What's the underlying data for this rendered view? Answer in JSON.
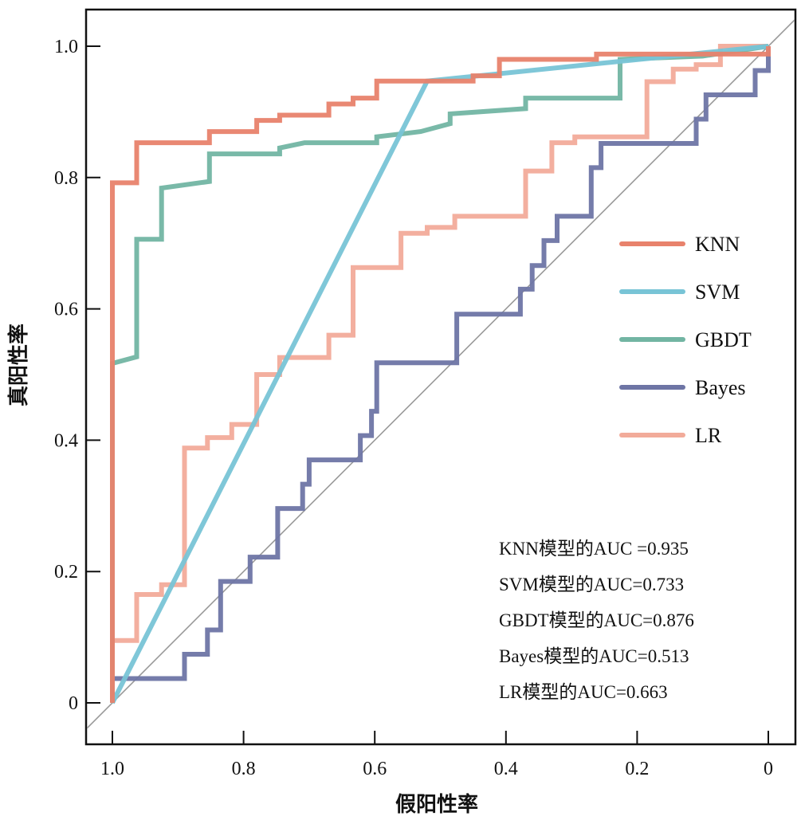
{
  "chart_data": {
    "type": "line",
    "title": "",
    "xlabel": "假阳性率",
    "ylabel": "真阳性率",
    "xlim": [
      1.05,
      -0.04
    ],
    "ylim": [
      -0.04,
      1.06
    ],
    "x_reversed": true,
    "x_ticks": [
      1.0,
      0.8,
      0.6,
      0.4,
      0.2,
      0
    ],
    "x_tick_labels": [
      "1.0",
      "0.8",
      "0.6",
      "0.4",
      "0.2",
      "0"
    ],
    "y_ticks": [
      0,
      0.2,
      0.4,
      0.6,
      0.8,
      1.0
    ],
    "y_tick_labels": [
      "0",
      "0.2",
      "0.4",
      "0.6",
      "0.8",
      "1.0"
    ],
    "grid": false,
    "legend_position": "right",
    "diagonal_reference": true,
    "series": [
      {
        "name": "KNN",
        "color": "#e8826c",
        "points": [
          [
            1.0,
            0
          ],
          [
            1.0,
            0.792
          ],
          [
            0.963,
            0.792
          ],
          [
            0.963,
            0.853
          ],
          [
            0.852,
            0.853
          ],
          [
            0.852,
            0.87
          ],
          [
            0.78,
            0.87
          ],
          [
            0.78,
            0.887
          ],
          [
            0.745,
            0.887
          ],
          [
            0.745,
            0.895
          ],
          [
            0.67,
            0.895
          ],
          [
            0.67,
            0.912
          ],
          [
            0.633,
            0.912
          ],
          [
            0.633,
            0.921
          ],
          [
            0.597,
            0.921
          ],
          [
            0.597,
            0.947
          ],
          [
            0.45,
            0.947
          ],
          [
            0.45,
            0.955
          ],
          [
            0.41,
            0.955
          ],
          [
            0.41,
            0.98
          ],
          [
            0.262,
            0.98
          ],
          [
            0.262,
            0.988
          ],
          [
            0.0,
            0.988
          ],
          [
            0.0,
            1.0
          ]
        ]
      },
      {
        "name": "SVM",
        "color": "#78c4d6",
        "points": [
          [
            1.0,
            0
          ],
          [
            0.52,
            0.947
          ],
          [
            0.0,
            1.0
          ]
        ]
      },
      {
        "name": "GBDT",
        "color": "#72b5a3",
        "points": [
          [
            1.0,
            0
          ],
          [
            1.0,
            0.517
          ],
          [
            0.963,
            0.527
          ],
          [
            0.963,
            0.706
          ],
          [
            0.925,
            0.706
          ],
          [
            0.925,
            0.784
          ],
          [
            0.852,
            0.794
          ],
          [
            0.852,
            0.836
          ],
          [
            0.745,
            0.836
          ],
          [
            0.745,
            0.845
          ],
          [
            0.707,
            0.853
          ],
          [
            0.597,
            0.853
          ],
          [
            0.597,
            0.862
          ],
          [
            0.53,
            0.87
          ],
          [
            0.485,
            0.882
          ],
          [
            0.485,
            0.897
          ],
          [
            0.37,
            0.905
          ],
          [
            0.37,
            0.921
          ],
          [
            0.226,
            0.921
          ],
          [
            0.226,
            0.98
          ],
          [
            0.1,
            0.985
          ],
          [
            0.0,
            1.0
          ]
        ]
      },
      {
        "name": "Bayes",
        "color": "#6e75a5",
        "points": [
          [
            1.0,
            0
          ],
          [
            1.0,
            0.037
          ],
          [
            0.89,
            0.037
          ],
          [
            0.89,
            0.074
          ],
          [
            0.855,
            0.074
          ],
          [
            0.855,
            0.111
          ],
          [
            0.835,
            0.111
          ],
          [
            0.835,
            0.185
          ],
          [
            0.79,
            0.185
          ],
          [
            0.79,
            0.222
          ],
          [
            0.748,
            0.222
          ],
          [
            0.748,
            0.296
          ],
          [
            0.71,
            0.296
          ],
          [
            0.71,
            0.333
          ],
          [
            0.7,
            0.333
          ],
          [
            0.7,
            0.37
          ],
          [
            0.622,
            0.37
          ],
          [
            0.622,
            0.407
          ],
          [
            0.605,
            0.407
          ],
          [
            0.605,
            0.444
          ],
          [
            0.597,
            0.444
          ],
          [
            0.597,
            0.518
          ],
          [
            0.475,
            0.518
          ],
          [
            0.475,
            0.592
          ],
          [
            0.378,
            0.592
          ],
          [
            0.378,
            0.63
          ],
          [
            0.36,
            0.63
          ],
          [
            0.36,
            0.666
          ],
          [
            0.342,
            0.666
          ],
          [
            0.342,
            0.704
          ],
          [
            0.322,
            0.704
          ],
          [
            0.322,
            0.741
          ],
          [
            0.27,
            0.741
          ],
          [
            0.27,
            0.815
          ],
          [
            0.255,
            0.815
          ],
          [
            0.255,
            0.852
          ],
          [
            0.11,
            0.852
          ],
          [
            0.11,
            0.889
          ],
          [
            0.095,
            0.889
          ],
          [
            0.095,
            0.926
          ],
          [
            0.02,
            0.926
          ],
          [
            0.02,
            0.963
          ],
          [
            0.0,
            0.963
          ],
          [
            0.0,
            1.0
          ]
        ]
      },
      {
        "name": "LR",
        "color": "#f2ab9a",
        "points": [
          [
            1.0,
            0
          ],
          [
            1.0,
            0.095
          ],
          [
            0.963,
            0.095
          ],
          [
            0.963,
            0.165
          ],
          [
            0.925,
            0.165
          ],
          [
            0.925,
            0.18
          ],
          [
            0.89,
            0.18
          ],
          [
            0.89,
            0.388
          ],
          [
            0.855,
            0.388
          ],
          [
            0.855,
            0.404
          ],
          [
            0.818,
            0.404
          ],
          [
            0.818,
            0.424
          ],
          [
            0.78,
            0.424
          ],
          [
            0.78,
            0.5
          ],
          [
            0.745,
            0.5
          ],
          [
            0.745,
            0.526
          ],
          [
            0.67,
            0.526
          ],
          [
            0.67,
            0.56
          ],
          [
            0.633,
            0.56
          ],
          [
            0.633,
            0.663
          ],
          [
            0.56,
            0.663
          ],
          [
            0.56,
            0.715
          ],
          [
            0.52,
            0.715
          ],
          [
            0.52,
            0.724
          ],
          [
            0.478,
            0.724
          ],
          [
            0.478,
            0.741
          ],
          [
            0.37,
            0.741
          ],
          [
            0.37,
            0.81
          ],
          [
            0.33,
            0.81
          ],
          [
            0.33,
            0.853
          ],
          [
            0.295,
            0.853
          ],
          [
            0.295,
            0.862
          ],
          [
            0.185,
            0.862
          ],
          [
            0.185,
            0.87
          ],
          [
            0.185,
            0.946
          ],
          [
            0.145,
            0.946
          ],
          [
            0.145,
            0.965
          ],
          [
            0.11,
            0.965
          ],
          [
            0.11,
            0.972
          ],
          [
            0.073,
            0.972
          ],
          [
            0.073,
            1.0
          ],
          [
            0.0,
            1.0
          ]
        ]
      }
    ],
    "annotations": [
      "KNN模型的AUC =0.935",
      "SVM模型的AUC=0.733",
      "GBDT模型的AUC=0.876",
      "Bayes模型的AUC=0.513",
      "LR模型的AUC=0.663"
    ],
    "auc": {
      "KNN": 0.935,
      "SVM": 0.733,
      "GBDT": 0.876,
      "Bayes": 0.513,
      "LR": 0.663
    }
  }
}
